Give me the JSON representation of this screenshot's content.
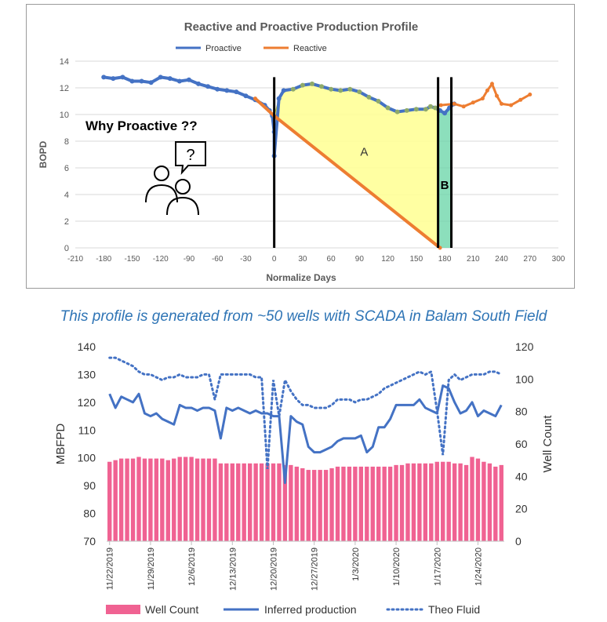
{
  "caption": "This profile is generated from ~50 wells with SCADA in Balam South Field",
  "chart_data": [
    {
      "type": "line",
      "title": "Reactive and Proactive Production Profile",
      "xlabel": "Normalize Days",
      "ylabel": "BOPD",
      "xlim": [
        -210,
        300
      ],
      "ylim": [
        0,
        14
      ],
      "x_ticks": [
        -210,
        -180,
        -150,
        -120,
        -90,
        -60,
        -30,
        0,
        30,
        60,
        90,
        120,
        150,
        180,
        210,
        240,
        270,
        300
      ],
      "y_ticks": [
        0,
        2,
        4,
        6,
        8,
        10,
        12,
        14
      ],
      "grid": true,
      "legend": "top-center",
      "series": [
        {
          "name": "Proactive",
          "color": "#4472c4",
          "x": [
            -180,
            -170,
            -160,
            -150,
            -140,
            -130,
            -120,
            -110,
            -100,
            -90,
            -80,
            -70,
            -60,
            -50,
            -40,
            -30,
            -20,
            -10,
            -5,
            -2,
            0,
            0,
            5,
            10,
            20,
            30,
            40,
            50,
            60,
            70,
            80,
            90,
            100,
            110,
            120,
            130,
            140,
            150,
            160,
            165,
            170,
            175,
            180,
            185,
            190
          ],
          "y": [
            12.8,
            12.7,
            12.8,
            12.5,
            12.5,
            12.4,
            12.8,
            12.7,
            12.5,
            12.6,
            12.3,
            12.1,
            11.9,
            11.8,
            11.7,
            11.4,
            11.1,
            10.7,
            10.3,
            9.9,
            8.7,
            6.9,
            11.2,
            11.8,
            11.9,
            12.2,
            12.3,
            12.1,
            11.9,
            11.8,
            11.9,
            11.7,
            11.3,
            11.0,
            10.5,
            10.2,
            10.3,
            10.4,
            10.4,
            10.6,
            10.5,
            10.3,
            10.1,
            10.5,
            10.8
          ]
        },
        {
          "name": "Reactive",
          "color": "#ed7d31",
          "x": [
            -20,
            0,
            175,
            176,
            190,
            200,
            210,
            220,
            225,
            230,
            235,
            240,
            250,
            260,
            270
          ],
          "y": [
            11.2,
            9.9,
            0.0,
            10.7,
            10.8,
            10.6,
            10.9,
            11.2,
            11.8,
            12.3,
            11.4,
            10.8,
            10.7,
            11.1,
            11.5
          ]
        }
      ],
      "annotations": {
        "question": "Why Proactive ??",
        "region_a": "A",
        "region_b": "B",
        "vertical_lines_x": [
          0,
          173,
          187
        ]
      }
    },
    {
      "type": "bar",
      "xlabel": "",
      "ylabel": "MBFPD",
      "y2label": "Well Count",
      "ylim": [
        70,
        140
      ],
      "y2lim": [
        0,
        120
      ],
      "y_ticks": [
        70,
        80,
        90,
        100,
        110,
        120,
        130,
        140
      ],
      "y2_ticks": [
        0,
        20,
        40,
        60,
        80,
        100,
        120
      ],
      "x_tick_labels": [
        "11/22/2019",
        "11/29/2019",
        "12/6/2019",
        "12/13/2019",
        "12/20/2019",
        "12/27/2019",
        "1/3/2020",
        "1/10/2020",
        "1/17/2020",
        "1/24/2020"
      ],
      "legend": "bottom",
      "series": [
        {
          "name": "Well Count",
          "type": "bar",
          "axis": "right",
          "color": "#f06292",
          "values": [
            49,
            50,
            51,
            51,
            51,
            52,
            51,
            51,
            51,
            51,
            50,
            51,
            52,
            52,
            52,
            51,
            51,
            51,
            51,
            48,
            48,
            48,
            48,
            48,
            48,
            48,
            48,
            48,
            48,
            48,
            47,
            47,
            46,
            45,
            44,
            44,
            44,
            44,
            45,
            46,
            46,
            46,
            46,
            46,
            46,
            46,
            46,
            46,
            46,
            47,
            47,
            48,
            48,
            48,
            48,
            48,
            49,
            49,
            49,
            48,
            48,
            47,
            52,
            51,
            49,
            48,
            46,
            47
          ]
        },
        {
          "name": "Inferred production",
          "type": "line",
          "axis": "left",
          "color": "#4472c4",
          "values": [
            123,
            118,
            122,
            121,
            120,
            123,
            116,
            115,
            116,
            114,
            113,
            112,
            119,
            118,
            118,
            117,
            118,
            118,
            117,
            107,
            118,
            117,
            118,
            117,
            116,
            117,
            116,
            116,
            115,
            115,
            91,
            115,
            113,
            112,
            104,
            102,
            102,
            103,
            104,
            106,
            107,
            107,
            107,
            108,
            102,
            104,
            111,
            111,
            114,
            119,
            119,
            119,
            119,
            121,
            118,
            117,
            116,
            126,
            125,
            120,
            116,
            117,
            120,
            115,
            117,
            116,
            115,
            119
          ]
        },
        {
          "name": "Theo Fluid",
          "type": "line",
          "axis": "left",
          "color": "#4472c4",
          "dashed": true,
          "values": [
            136,
            136,
            135,
            134,
            133,
            131,
            130,
            130,
            129,
            128,
            129,
            129,
            130,
            129,
            129,
            129,
            130,
            130,
            121,
            130,
            130,
            130,
            130,
            130,
            130,
            129,
            129,
            96,
            128,
            115,
            128,
            124,
            121,
            119,
            119,
            118,
            118,
            118,
            119,
            121,
            121,
            121,
            120,
            121,
            121,
            122,
            123,
            125,
            126,
            127,
            128,
            129,
            130,
            131,
            130,
            131,
            117,
            101,
            128,
            130,
            128,
            129,
            130,
            130,
            130,
            131,
            131,
            130
          ]
        }
      ]
    }
  ]
}
